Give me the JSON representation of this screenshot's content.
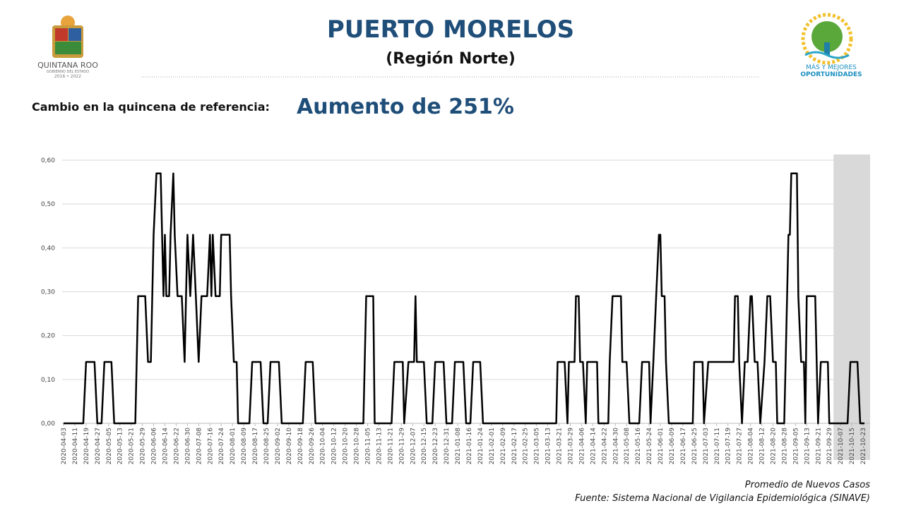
{
  "header": {
    "title": "PUERTO MORELOS",
    "subtitle": "(Región Norte)",
    "change_label": "Cambio en la quincena de referencia:",
    "change_value": "Aumento de 251%"
  },
  "logos": {
    "left": [
      "QUINTANA ROO",
      "GOBIERNO DEL ESTADO",
      "2016 • 2022"
    ],
    "right": [
      "MÁS Y MEJORES",
      "OPORTUNIDADES"
    ]
  },
  "chart_data": {
    "type": "line",
    "x": [
      "2020-04-03",
      "2020-04-17",
      "2020-04-19",
      "2020-04-25",
      "2020-04-27",
      "2020-04-30",
      "2020-05-02",
      "2020-05-07",
      "2020-05-09",
      "2020-05-24",
      "2020-05-26",
      "2020-05-31",
      "2020-06-02",
      "2020-06-04",
      "2020-06-06",
      "2020-06-08",
      "2020-06-11",
      "2020-06-13",
      "2020-06-14",
      "2020-06-15",
      "2020-06-17",
      "2020-06-18",
      "2020-06-20",
      "2020-06-21",
      "2020-06-23",
      "2020-06-26",
      "2020-06-28",
      "2020-06-29",
      "2020-06-30",
      "2020-07-02",
      "2020-07-04",
      "2020-07-06",
      "2020-07-08",
      "2020-07-10",
      "2020-07-14",
      "2020-07-16",
      "2020-07-17",
      "2020-07-18",
      "2020-07-20",
      "2020-07-23",
      "2020-07-24",
      "2020-07-30",
      "2020-07-31",
      "2020-08-02",
      "2020-08-04",
      "2020-08-05",
      "2020-08-13",
      "2020-08-15",
      "2020-08-21",
      "2020-08-23",
      "2020-08-26",
      "2020-08-28",
      "2020-09-03",
      "2020-09-05",
      "2020-09-20",
      "2020-09-22",
      "2020-09-27",
      "2020-09-29",
      "2020-11-02",
      "2020-11-04",
      "2020-11-09",
      "2020-11-10",
      "2020-11-22",
      "2020-11-24",
      "2020-11-30",
      "2020-12-01",
      "2020-12-04",
      "2020-12-08",
      "2020-12-09",
      "2020-12-10",
      "2020-12-15",
      "2020-12-17",
      "2020-12-21",
      "2020-12-23",
      "2020-12-29",
      "2020-12-31",
      "2021-01-04",
      "2021-01-06",
      "2021-01-12",
      "2021-01-14",
      "2021-01-17",
      "2021-01-19",
      "2021-01-24",
      "2021-01-26",
      "2021-03-19",
      "2021-03-20",
      "2021-03-25",
      "2021-03-27",
      "2021-03-28",
      "2021-04-01",
      "2021-04-02",
      "2021-04-04",
      "2021-04-05",
      "2021-04-07",
      "2021-04-09",
      "2021-04-10",
      "2021-04-17",
      "2021-04-18",
      "2021-04-25",
      "2021-04-26",
      "2021-04-28",
      "2021-05-04",
      "2021-05-05",
      "2021-05-08",
      "2021-05-10",
      "2021-05-17",
      "2021-05-19",
      "2021-05-24",
      "2021-05-25",
      "2021-05-27",
      "2021-05-29",
      "2021-05-31",
      "2021-06-01",
      "2021-06-02",
      "2021-06-04",
      "2021-06-05",
      "2021-06-07",
      "2021-06-24",
      "2021-06-25",
      "2021-07-01",
      "2021-07-02",
      "2021-07-05",
      "2021-07-23",
      "2021-07-24",
      "2021-07-26",
      "2021-07-27",
      "2021-07-29",
      "2021-07-31",
      "2021-08-02",
      "2021-08-04",
      "2021-08-05",
      "2021-08-07",
      "2021-08-09",
      "2021-08-11",
      "2021-08-14",
      "2021-08-16",
      "2021-08-18",
      "2021-08-20",
      "2021-08-22",
      "2021-08-23",
      "2021-08-28",
      "2021-08-29",
      "2021-08-31",
      "2021-09-01",
      "2021-09-02",
      "2021-09-06",
      "2021-09-07",
      "2021-09-09",
      "2021-09-11",
      "2021-09-12",
      "2021-09-13",
      "2021-09-19",
      "2021-09-21",
      "2021-09-23",
      "2021-09-28",
      "2021-09-29",
      "2021-10-12",
      "2021-10-14",
      "2021-10-19",
      "2021-10-21",
      "2021-10-24"
    ],
    "values": [
      0,
      0,
      0.14,
      0.14,
      0,
      0,
      0.14,
      0.14,
      0,
      0,
      0.29,
      0.29,
      0.14,
      0.14,
      0.43,
      0.57,
      0.57,
      0.29,
      0.43,
      0.29,
      0.29,
      0.43,
      0.57,
      0.43,
      0.29,
      0.29,
      0.14,
      0.29,
      0.43,
      0.29,
      0.43,
      0.29,
      0.14,
      0.29,
      0.29,
      0.43,
      0.29,
      0.43,
      0.29,
      0.29,
      0.43,
      0.43,
      0.29,
      0.14,
      0.14,
      0,
      0,
      0.14,
      0.14,
      0,
      0,
      0.14,
      0.14,
      0,
      0,
      0.14,
      0.14,
      0,
      0,
      0.29,
      0.29,
      0,
      0,
      0.14,
      0.14,
      0,
      0.14,
      0.14,
      0.29,
      0.14,
      0.14,
      0,
      0,
      0.14,
      0.14,
      0,
      0,
      0.14,
      0.14,
      0,
      0,
      0.14,
      0.14,
      0,
      0,
      0.14,
      0.14,
      0,
      0.14,
      0.14,
      0.29,
      0.29,
      0.14,
      0.14,
      0,
      0.14,
      0.14,
      0,
      0,
      0.14,
      0.29,
      0.29,
      0.14,
      0.14,
      0,
      0,
      0.14,
      0.14,
      0,
      0.14,
      0.29,
      0.43,
      0.43,
      0.29,
      0.29,
      0.14,
      0,
      0,
      0.14,
      0.14,
      0,
      0.14,
      0.14,
      0.29,
      0.29,
      0.14,
      0,
      0.14,
      0.14,
      0.29,
      0.29,
      0.14,
      0.14,
      0,
      0.14,
      0.29,
      0.29,
      0.14,
      0.14,
      0,
      0,
      0.14,
      0.43,
      0.43,
      0.57,
      0.57,
      0.29,
      0.14,
      0.14,
      0,
      0.29,
      0.29,
      0,
      0.14,
      0.14,
      0,
      0,
      0.14,
      0.14,
      0,
      0
    ],
    "color": "#000000",
    "xlim": [
      "2020-04-02",
      "2021-10-28"
    ],
    "xticks": [
      "2020-04-03",
      "2020-04-11",
      "2020-04-19",
      "2020-04-27",
      "2020-05-05",
      "2020-05-13",
      "2020-05-21",
      "2020-05-29",
      "2020-06-06",
      "2020-06-14",
      "2020-06-22",
      "2020-06-30",
      "2020-07-08",
      "2020-07-16",
      "2020-07-24",
      "2020-08-01",
      "2020-08-09",
      "2020-08-17",
      "2020-08-25",
      "2020-09-02",
      "2020-09-10",
      "2020-09-18",
      "2020-09-26",
      "2020-10-04",
      "2020-10-12",
      "2020-10-20",
      "2020-10-28",
      "2020-11-05",
      "2020-11-13",
      "2020-11-21",
      "2020-11-29",
      "2020-12-07",
      "2020-12-15",
      "2020-12-23",
      "2020-12-31",
      "2021-01-08",
      "2021-01-16",
      "2021-01-24",
      "2021-02-01",
      "2021-02-09",
      "2021-02-17",
      "2021-02-25",
      "2021-03-05",
      "2021-03-13",
      "2021-03-21",
      "2021-03-29",
      "2021-04-06",
      "2021-04-14",
      "2021-04-22",
      "2021-04-30",
      "2021-05-08",
      "2021-05-16",
      "2021-05-24",
      "2021-06-01",
      "2021-06-09",
      "2021-06-17",
      "2021-06-25",
      "2021-07-03",
      "2021-07-11",
      "2021-07-19",
      "2021-07-27",
      "2021-08-04",
      "2021-08-12",
      "2021-08-20",
      "2021-08-28",
      "2021-09-05",
      "2021-09-13",
      "2021-09-21",
      "2021-09-29",
      "2021-10-07",
      "2021-10-15",
      "2021-10-23"
    ],
    "ylim": [
      0,
      0.6
    ],
    "yticks": [
      {
        "value": 0,
        "label": "0,00"
      },
      {
        "value": 0.1,
        "label": "0,10"
      },
      {
        "value": 0.2,
        "label": "0,20"
      },
      {
        "value": 0.3,
        "label": "0,30"
      },
      {
        "value": 0.4,
        "label": "0,40"
      },
      {
        "value": 0.5,
        "label": "0,50"
      },
      {
        "value": 0.6,
        "label": "0,60"
      }
    ],
    "grid": true,
    "shaded_range": [
      "2021-10-02",
      "2021-10-28"
    ],
    "notes": [
      "Promedio de Nuevos Casos",
      "Fuente: Sistema Nacional de Vigilancia Epidemiológica (SINAVE)"
    ]
  }
}
